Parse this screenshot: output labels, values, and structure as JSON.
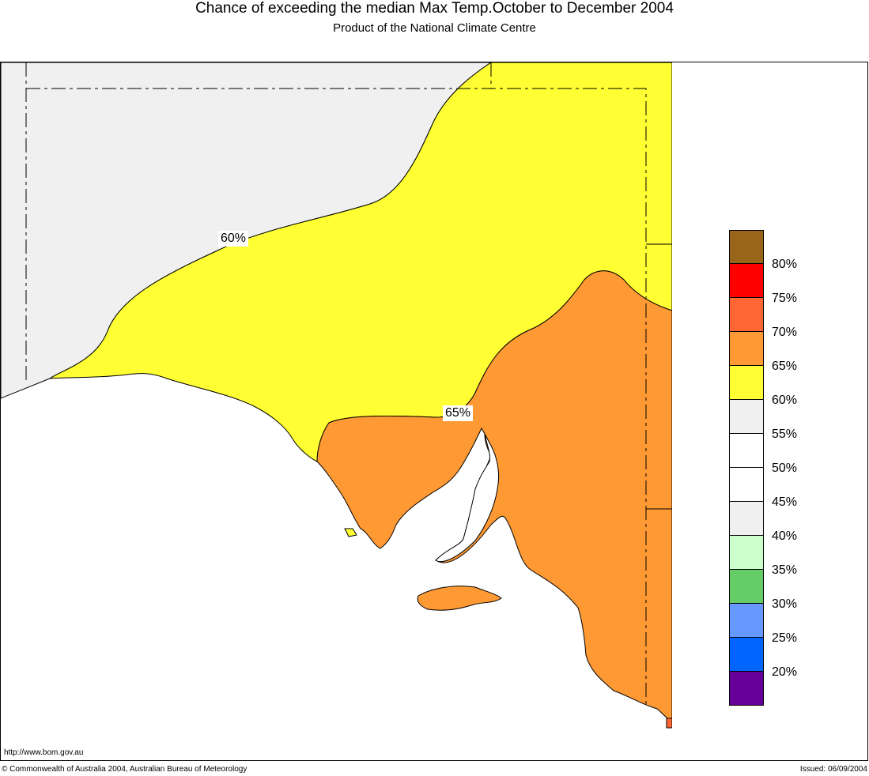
{
  "header": {
    "title": "Chance of exceeding the median Max Temp.October to December 2004",
    "subtitle": "Product of the National Climate Centre"
  },
  "map": {
    "contour_labels": [
      "60%",
      "65%"
    ],
    "colors": {
      "sixty_five_to_seventy": "#FF9933",
      "sixty_to_sixty_five": "#FFFF33",
      "forty_to_forty_five": "#F0F0F0",
      "fifty_five_to_sixty": "#F0F0F0",
      "seventy_to_seventy_five": "#FF6633",
      "background": "#FFFFFF"
    }
  },
  "legend": {
    "swatches": [
      {
        "color": "#996619"
      },
      {
        "color": "#FF0000"
      },
      {
        "color": "#FF6633"
      },
      {
        "color": "#FF9933"
      },
      {
        "color": "#FFFF33"
      },
      {
        "color": "#F0F0F0"
      },
      {
        "color": "#FFFFFF"
      },
      {
        "color": "#FFFFFF"
      },
      {
        "color": "#F0F0F0"
      },
      {
        "color": "#CCFFCC"
      },
      {
        "color": "#66CC66"
      },
      {
        "color": "#6699FF"
      },
      {
        "color": "#0066FF"
      },
      {
        "color": "#660099"
      }
    ],
    "labels": [
      "80%",
      "75%",
      "70%",
      "65%",
      "60%",
      "55%",
      "50%",
      "45%",
      "40%",
      "35%",
      "30%",
      "25%",
      "20%"
    ]
  },
  "footer": {
    "url": "http://www.bom.gov.au",
    "copyright": "© Commonwealth of Australia 2004, Australian Bureau of Meteorology",
    "issued": "Issued: 06/09/2004"
  }
}
